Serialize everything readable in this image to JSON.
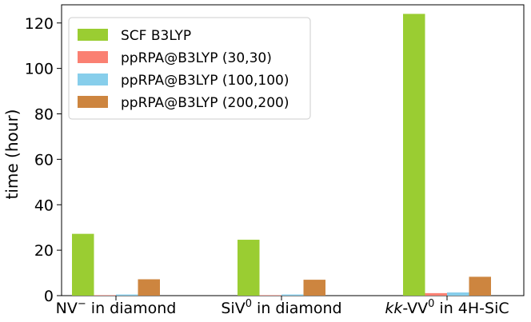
{
  "chart_data": {
    "type": "bar",
    "title": "",
    "xlabel": "",
    "ylabel": "time (hour)",
    "ylim": [
      0,
      128
    ],
    "yticks": [
      0,
      20,
      40,
      60,
      80,
      100,
      120
    ],
    "grid": false,
    "legend_placement": "top-left",
    "categories": [
      {
        "prefix": "NV",
        "sup": "−",
        "suffix": " in diamond",
        "italic_prefix": false
      },
      {
        "prefix": "SiV",
        "sup": "0",
        "suffix": " in diamond",
        "italic_prefix": false
      },
      {
        "prefix": "kk",
        "mid": "-VV",
        "sup": "0",
        "suffix": " in 4H-SiC",
        "italic_prefix": true
      }
    ],
    "series": [
      {
        "name": "SCF B3LYP",
        "color": "#9acd32",
        "values": [
          27.2,
          24.6,
          124.0
        ]
      },
      {
        "name": "ppRPA@B3LYP (30,30)",
        "color": "#fa8072",
        "values": [
          0.2,
          0.2,
          1.1
        ]
      },
      {
        "name": "ppRPA@B3LYP (100,100)",
        "color": "#87ceeb",
        "values": [
          0.5,
          0.5,
          1.4
        ]
      },
      {
        "name": "ppRPA@B3LYP (200,200)",
        "color": "#cd853f",
        "values": [
          7.2,
          7.0,
          8.3
        ]
      }
    ]
  }
}
